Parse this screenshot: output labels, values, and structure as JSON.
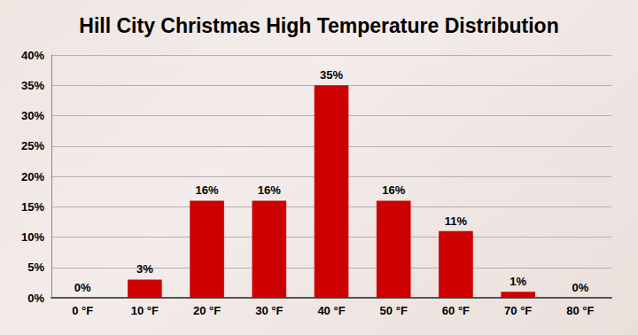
{
  "chart_data": {
    "type": "bar",
    "title": "Hill City Christmas High Temperature Distribution",
    "categories": [
      "0 °F",
      "10 °F",
      "20 °F",
      "30 °F",
      "40 °F",
      "50 °F",
      "60 °F",
      "70 °F",
      "80 °F"
    ],
    "values": [
      0,
      3,
      16,
      16,
      35,
      16,
      11,
      1,
      0
    ],
    "value_labels": [
      "0%",
      "3%",
      "16%",
      "16%",
      "35%",
      "16%",
      "11%",
      "1%",
      "0%"
    ],
    "color": "#cc0000",
    "ylim": [
      0,
      40
    ],
    "yticks": [
      {
        "value": 0,
        "label": "0%"
      },
      {
        "value": 5,
        "label": "5%"
      },
      {
        "value": 10,
        "label": "10%"
      },
      {
        "value": 15,
        "label": "15%"
      },
      {
        "value": 20,
        "label": "20%"
      },
      {
        "value": 25,
        "label": "25%"
      },
      {
        "value": 30,
        "label": "30%"
      },
      {
        "value": 35,
        "label": "35%"
      },
      {
        "value": 40,
        "label": "40%"
      }
    ],
    "grid": true,
    "data_labels": true
  }
}
